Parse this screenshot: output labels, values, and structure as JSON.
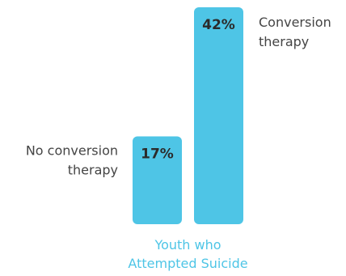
{
  "chart_data": {
    "type": "bar",
    "categories": [
      "Youth who Attempted Suicide"
    ],
    "category_label_lines": [
      "Youth who",
      "Attempted Suicide"
    ],
    "series": [
      {
        "name": "No conversion therapy",
        "name_lines": [
          "No conversion",
          "therapy"
        ],
        "values": [
          17
        ],
        "value_label": "17%"
      },
      {
        "name": "Conversion therapy",
        "name_lines": [
          "Conversion",
          "therapy"
        ],
        "values": [
          42
        ],
        "value_label": "42%"
      }
    ],
    "ylim": [
      0,
      42
    ],
    "grid": false,
    "legend": "inline-labels",
    "bar_color": "#4ec5e6",
    "category_label_color": "#4ec5e6"
  }
}
